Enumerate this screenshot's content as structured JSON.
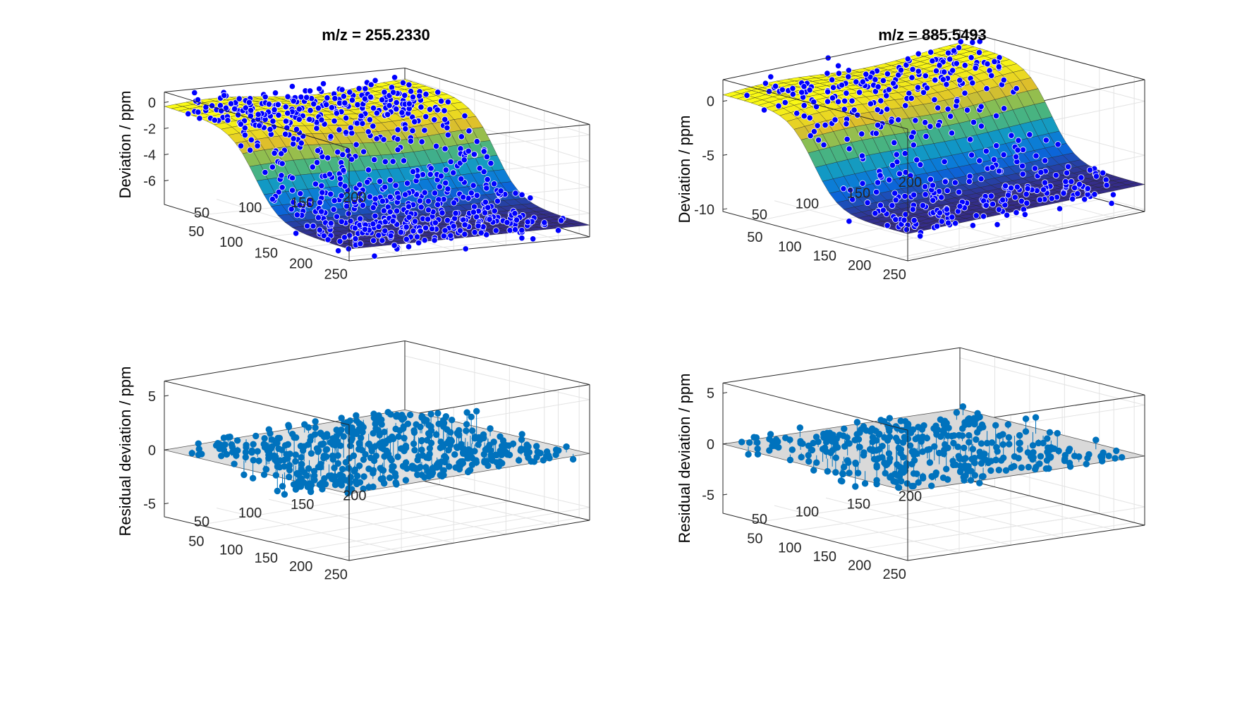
{
  "chart_data": [
    {
      "type": "scatter",
      "panel": "top-left",
      "title": "m/z = 255.2330",
      "ylabel": "Deviation / ppm",
      "zlim": [
        -7.8,
        0.8
      ],
      "z_ticks": [
        "0",
        "-2",
        "-4",
        "-6"
      ],
      "x_ticks": [
        "50",
        "100",
        "150",
        "200",
        "250"
      ],
      "y_ticks": [
        "50",
        "100",
        "150",
        "200"
      ],
      "xlim": [
        0,
        265
      ],
      "ylim": [
        0,
        230
      ],
      "grid": "on",
      "series": [
        {
          "kind": "surface",
          "colormap": "parula",
          "x": [
            0,
            265
          ],
          "y": [
            0,
            230
          ],
          "z_high": -0.3,
          "z_low": -6.9,
          "transition_x": 130
        },
        {
          "kind": "scatter",
          "color": "#0000ff",
          "count": 700,
          "spread_ppm": 1.1
        }
      ]
    },
    {
      "type": "scatter",
      "panel": "top-right",
      "title": "m/z = 885.5493",
      "ylabel": "Deviation / ppm",
      "zlim": [
        -10.2,
        2.0
      ],
      "z_ticks": [
        "0",
        "-5",
        "-10"
      ],
      "x_ticks": [
        "50",
        "100",
        "150",
        "200",
        "250"
      ],
      "y_ticks": [
        "50",
        "100",
        "150",
        "200"
      ],
      "xlim": [
        0,
        265
      ],
      "ylim": [
        0,
        230
      ],
      "grid": "on",
      "series": [
        {
          "kind": "surface",
          "colormap": "parula",
          "x": [
            0,
            265
          ],
          "y": [
            0,
            230
          ],
          "z_high": 0.6,
          "z_low": -7.7,
          "transition_x": 130
        },
        {
          "kind": "scatter",
          "color": "#0000ff",
          "count": 420,
          "spread_ppm": 1.4
        }
      ]
    },
    {
      "type": "stem3",
      "panel": "bottom-left",
      "title": "",
      "ylabel": "Residual deviation / ppm",
      "zlim": [
        -6.2,
        6.4
      ],
      "z_ticks": [
        "5",
        "0",
        "-5"
      ],
      "x_ticks": [
        "50",
        "100",
        "150",
        "200",
        "250"
      ],
      "y_ticks": [
        "50",
        "100",
        "150",
        "200"
      ],
      "xlim": [
        0,
        265
      ],
      "ylim": [
        0,
        230
      ],
      "grid": "on",
      "series": [
        {
          "kind": "stem",
          "color": "#0072bd",
          "count": 520,
          "range_ppm": [
            -6,
            6.5
          ]
        }
      ]
    },
    {
      "type": "stem3",
      "panel": "bottom-right",
      "title": "",
      "ylabel": "Residual deviation / ppm",
      "zlim": [
        -6.8,
        6.0
      ],
      "z_ticks": [
        "5",
        "0",
        "-5"
      ],
      "x_ticks": [
        "50",
        "100",
        "150",
        "200",
        "250"
      ],
      "y_ticks": [
        "50",
        "100",
        "150",
        "200"
      ],
      "xlim": [
        0,
        265
      ],
      "ylim": [
        0,
        230
      ],
      "grid": "on",
      "series": [
        {
          "kind": "plane",
          "color": "#d9d9d9",
          "z": 0
        },
        {
          "kind": "stem",
          "color": "#0072bd",
          "count": 380,
          "range_ppm": [
            -7,
            5.5
          ]
        }
      ]
    }
  ]
}
